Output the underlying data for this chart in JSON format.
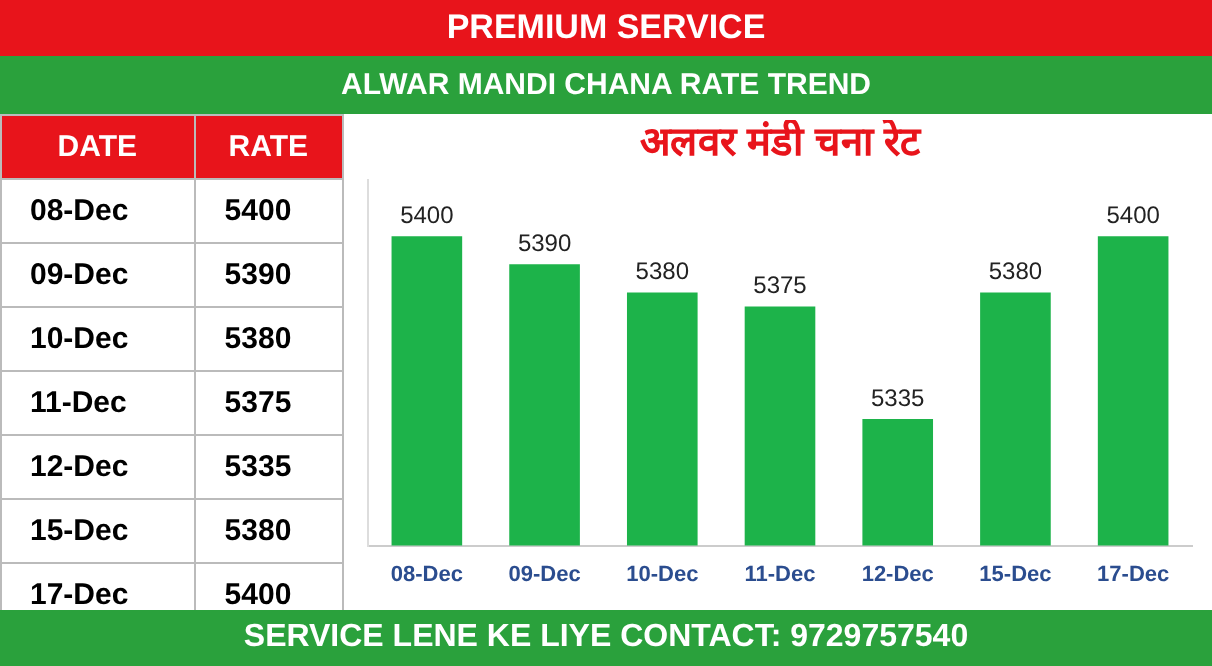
{
  "chart_data": [
    {
      "type": "other",
      "annotations": [
        "DATE",
        "RATE"
      ],
      "categories": [
        "08-Dec",
        "09-Dec",
        "10-Dec",
        "11-Dec",
        "12-Dec",
        "15-Dec",
        "17-Dec"
      ],
      "values": [
        5400,
        5390,
        5380,
        5375,
        5335,
        5380,
        5400
      ],
      "data_labels": true
    },
    {
      "type": "bar",
      "title": "ALWAR MANDI CHANA RATE TREND",
      "subtitle": "अलवर मंडी चना रेट",
      "annotations": [
        "PREMIUM SERVICE",
        "SERVICE LENE KE LIYE CONTACT: 9729757540"
      ],
      "categories": [
        "08-Dec",
        "09-Dec",
        "10-Dec",
        "11-Dec",
        "12-Dec",
        "15-Dec",
        "17-Dec"
      ],
      "values": [
        5400,
        5390,
        5380,
        5375,
        5335,
        5380,
        5400
      ],
      "color": "#1db34a",
      "ylim": [
        5290,
        5420
      ],
      "data_labels": true,
      "grid": false,
      "legend": false
    }
  ]
}
